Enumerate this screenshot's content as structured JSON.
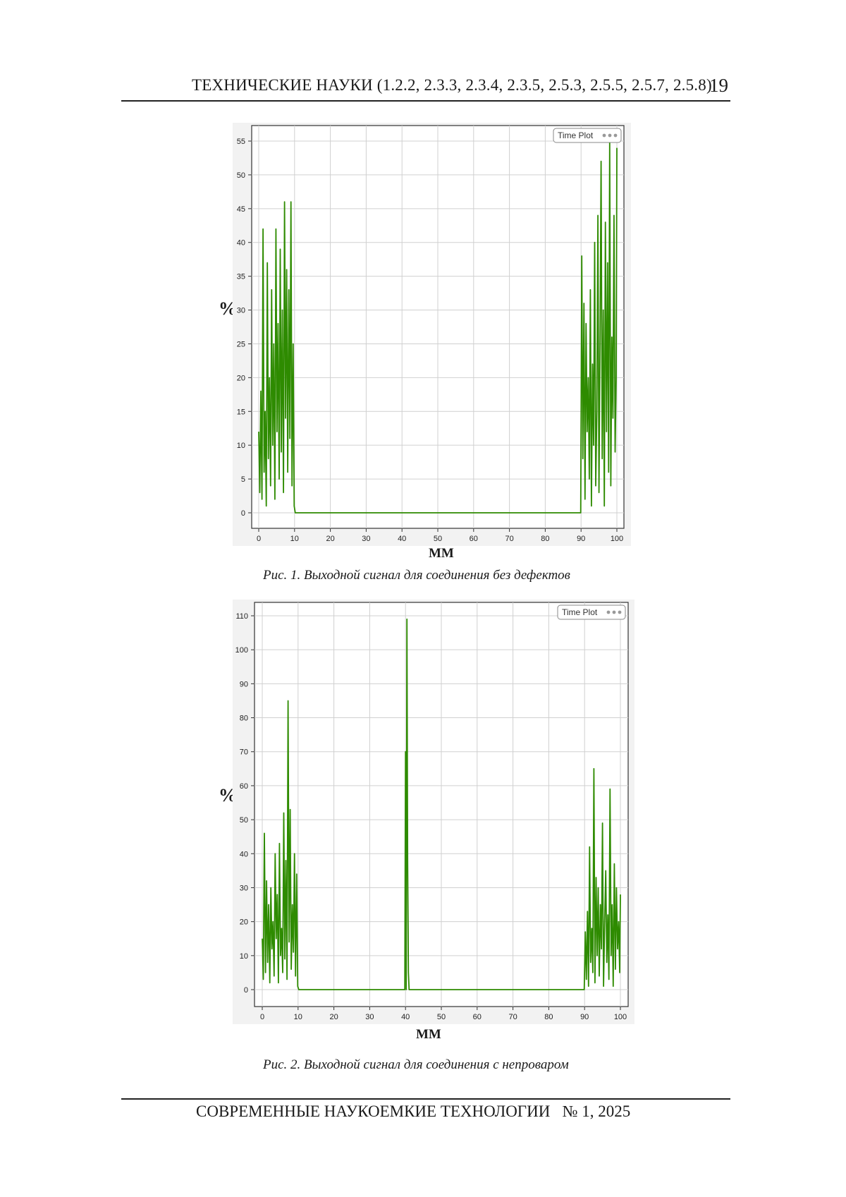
{
  "header": {
    "title": "ТЕХНИЧЕСКИЕ НАУКИ (1.2.2, 2.3.3, 2.3.4, 2.3.5, 2.5.3, 2.5.5, 2.5.7, 2.5.8)",
    "page_number": "19"
  },
  "footer": {
    "journal": "СОВРЕМЕННЫЕ НАУКОЕМКИЕ ТЕХНОЛОГИИ   № 1, 2025"
  },
  "figures": [
    {
      "caption": "Рис. 1. Выходной сигнал для соединения без дефектов",
      "legend_label": "Time Plot",
      "ylabel": "%",
      "xlabel": "ММ"
    },
    {
      "caption": "Рис. 2. Выходной сигнал для соединения с непроваром",
      "legend_label": "Time Plot",
      "ylabel": "%",
      "xlabel": "ММ"
    }
  ],
  "chart_data": [
    {
      "type": "line",
      "series_color": "#2e8b00",
      "xlim": [
        0,
        100
      ],
      "ylim": [
        0,
        55
      ],
      "xticks": [
        0,
        10,
        20,
        30,
        40,
        50,
        60,
        70,
        80,
        90,
        100
      ],
      "yticks": [
        0,
        5,
        10,
        15,
        20,
        25,
        30,
        35,
        40,
        45,
        50,
        55
      ],
      "grid": true,
      "legend_position": "top-right",
      "x": [
        0,
        0.3,
        0.6,
        0.9,
        1.2,
        1.5,
        1.8,
        2.1,
        2.4,
        2.7,
        3.0,
        3.3,
        3.6,
        3.9,
        4.2,
        4.5,
        4.8,
        5.1,
        5.4,
        5.7,
        6.0,
        6.3,
        6.6,
        6.9,
        7.2,
        7.5,
        7.8,
        8.1,
        8.4,
        8.7,
        9.0,
        9.3,
        9.6,
        9.9,
        10.2,
        10.5,
        20,
        30,
        40,
        50,
        60,
        70,
        80,
        89.9,
        90.2,
        90.5,
        90.8,
        91.1,
        91.4,
        91.7,
        92.0,
        92.3,
        92.6,
        92.9,
        93.2,
        93.5,
        93.8,
        94.1,
        94.4,
        94.7,
        95.0,
        95.3,
        95.6,
        95.9,
        96.2,
        96.5,
        96.8,
        97.1,
        97.4,
        97.7,
        98.0,
        98.3,
        98.6,
        98.9,
        99.2,
        99.5,
        99.8,
        100
      ],
      "y": [
        12,
        3,
        18,
        2,
        42,
        6,
        15,
        1,
        37,
        8,
        20,
        4,
        33,
        10,
        25,
        2,
        42,
        12,
        28,
        5,
        39,
        9,
        30,
        3,
        46,
        14,
        36,
        6,
        33,
        11,
        46,
        4,
        25,
        1,
        0,
        0,
        0,
        0,
        0,
        0,
        0,
        0,
        0,
        0,
        38,
        8,
        31,
        2,
        28,
        12,
        20,
        5,
        33,
        1,
        22,
        10,
        40,
        4,
        15,
        44,
        3,
        25,
        52,
        8,
        30,
        1,
        43,
        12,
        37,
        6,
        55,
        4,
        26,
        14,
        44,
        9,
        20,
        54
      ]
    },
    {
      "type": "line",
      "series_color": "#2e8b00",
      "xlim": [
        0,
        100
      ],
      "ylim": [
        0,
        110
      ],
      "xticks": [
        0,
        10,
        20,
        30,
        40,
        50,
        60,
        70,
        80,
        90,
        100
      ],
      "yticks": [
        0,
        10,
        20,
        30,
        40,
        50,
        60,
        70,
        80,
        90,
        100,
        110
      ],
      "grid": true,
      "legend_position": "top-right",
      "x": [
        0,
        0.3,
        0.6,
        0.9,
        1.2,
        1.5,
        1.8,
        2.1,
        2.4,
        2.7,
        3.0,
        3.3,
        3.6,
        3.9,
        4.2,
        4.5,
        4.8,
        5.1,
        5.4,
        5.7,
        6.0,
        6.3,
        6.6,
        6.9,
        7.2,
        7.5,
        7.8,
        8.1,
        8.4,
        8.7,
        9.0,
        9.3,
        9.6,
        9.9,
        10.2,
        20,
        30,
        39.8,
        40.0,
        40.2,
        40.4,
        40.6,
        40.8,
        41.0,
        41.2,
        50,
        60,
        70,
        80,
        89.9,
        90.2,
        90.5,
        90.8,
        91.1,
        91.4,
        91.7,
        92.0,
        92.3,
        92.6,
        92.9,
        93.2,
        93.5,
        93.8,
        94.1,
        94.4,
        94.7,
        95.0,
        95.3,
        95.6,
        95.9,
        96.2,
        96.5,
        96.8,
        97.1,
        97.4,
        97.7,
        98.0,
        98.3,
        98.6,
        98.9,
        99.2,
        99.5,
        99.8,
        100
      ],
      "y": [
        15,
        3,
        46,
        5,
        32,
        8,
        25,
        2,
        30,
        12,
        20,
        4,
        40,
        15,
        28,
        2,
        43,
        10,
        18,
        5,
        52,
        9,
        38,
        3,
        85,
        14,
        53,
        6,
        25,
        11,
        40,
        4,
        34,
        1,
        0,
        0,
        0,
        0,
        70,
        0,
        109,
        38,
        5,
        0,
        0,
        0,
        0,
        0,
        0,
        0,
        17,
        3,
        23,
        1,
        42,
        8,
        18,
        5,
        65,
        2,
        33,
        10,
        30,
        4,
        25,
        12,
        49,
        1,
        19,
        35,
        8,
        22,
        3,
        59,
        10,
        25,
        1,
        37,
        6,
        30,
        12,
        20,
        5,
        28
      ]
    }
  ]
}
